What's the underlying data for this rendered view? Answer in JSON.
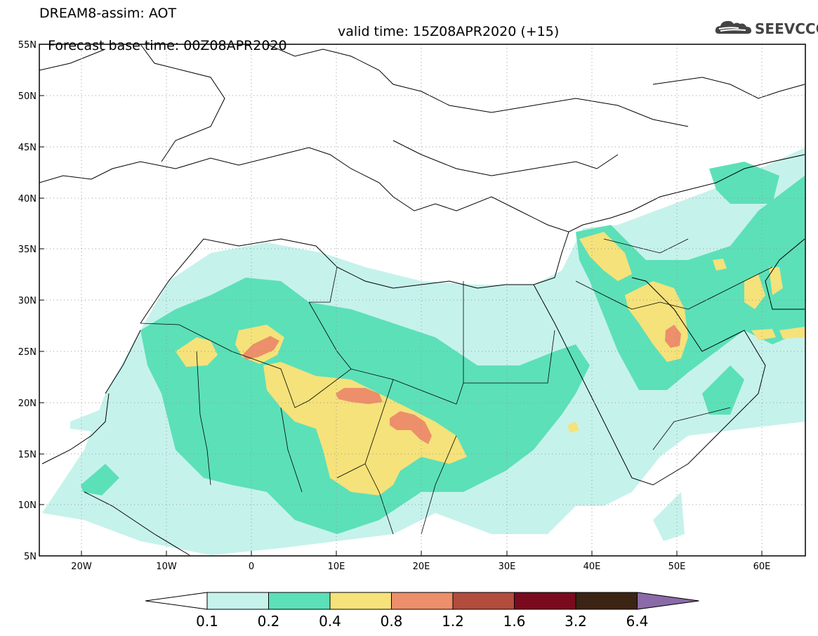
{
  "header": {
    "title_line1": "DREAM8-assim: AOT",
    "title_line2_base": "Forecast base time: 00Z08APR2020",
    "title_line2_valid": "valid time: 15Z08APR2020 (+15)"
  },
  "logo": {
    "text": "SEEVCCC",
    "icon": "cloud-icon"
  },
  "axes": {
    "lat_labels": [
      "55N",
      "50N",
      "45N",
      "40N",
      "35N",
      "30N",
      "25N",
      "20N",
      "15N",
      "10N",
      "5N"
    ],
    "lon_labels": [
      "20W",
      "10W",
      "0",
      "10E",
      "20E",
      "30E",
      "40E",
      "50E",
      "60E"
    ],
    "lat_range": [
      5,
      55
    ],
    "lon_range": [
      -25,
      65
    ],
    "grid": "dotted"
  },
  "colorbar": {
    "levels": [
      "0.1",
      "0.2",
      "0.4",
      "0.8",
      "1.2",
      "1.6",
      "3.2",
      "6.4"
    ],
    "colors": [
      "#ffffff",
      "#c6f2ec",
      "#5ce0b8",
      "#f5e27a",
      "#ec8f6a",
      "#b24d3e",
      "#7a0a1e",
      "#3b2413",
      "#8a6aa8"
    ],
    "extend": "both"
  },
  "colors": {
    "aot_0_1": "#c6f2ec",
    "aot_0_2": "#5ce0b8",
    "aot_0_4": "#f5e27a",
    "aot_0_8": "#ec8f6a"
  }
}
